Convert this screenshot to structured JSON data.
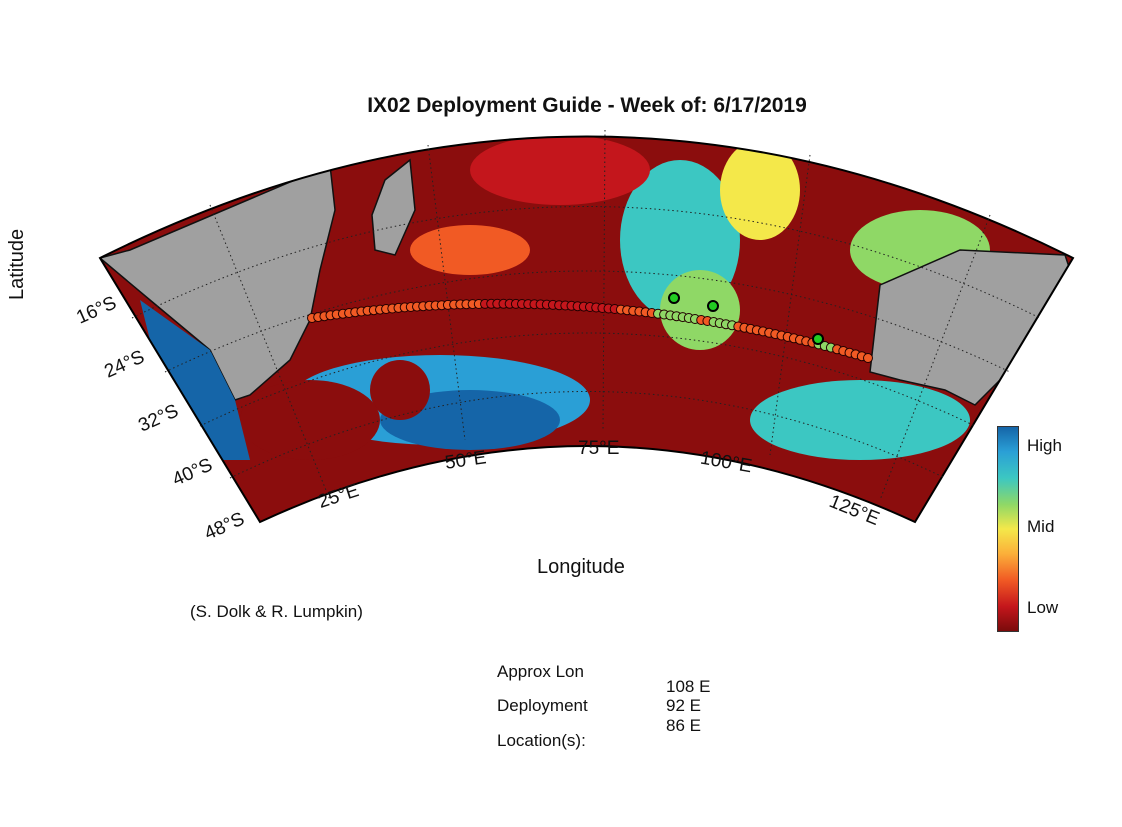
{
  "title": "IX02 Deployment Guide - Week of: 6/17/2019",
  "ylabel": "Latitude",
  "xlabel": "Longitude",
  "credit": "(S. Dolk & R. Lumpkin)",
  "colorbar": {
    "high": "High",
    "mid": "Mid",
    "low": "Low"
  },
  "lat_ticks": [
    {
      "label": "16°S"
    },
    {
      "label": "24°S"
    },
    {
      "label": "32°S"
    },
    {
      "label": "40°S"
    },
    {
      "label": "48°S"
    }
  ],
  "lon_ticks": [
    {
      "label": "25°E"
    },
    {
      "label": "50°E"
    },
    {
      "label": "75°E"
    },
    {
      "label": "100°E"
    },
    {
      "label": "125°E"
    }
  ],
  "deployment": {
    "heading_1": "Approx Lon",
    "heading_2": "Deployment",
    "heading_3": "Location(s):",
    "locations": [
      "108 E",
      "92 E",
      "86 E"
    ]
  },
  "colors": {
    "land": "#a0a0a0",
    "low": "#7a0b0b",
    "mid": "#f4e84a",
    "high": "#1565a8",
    "deployment_marker": "#22cc22"
  }
}
